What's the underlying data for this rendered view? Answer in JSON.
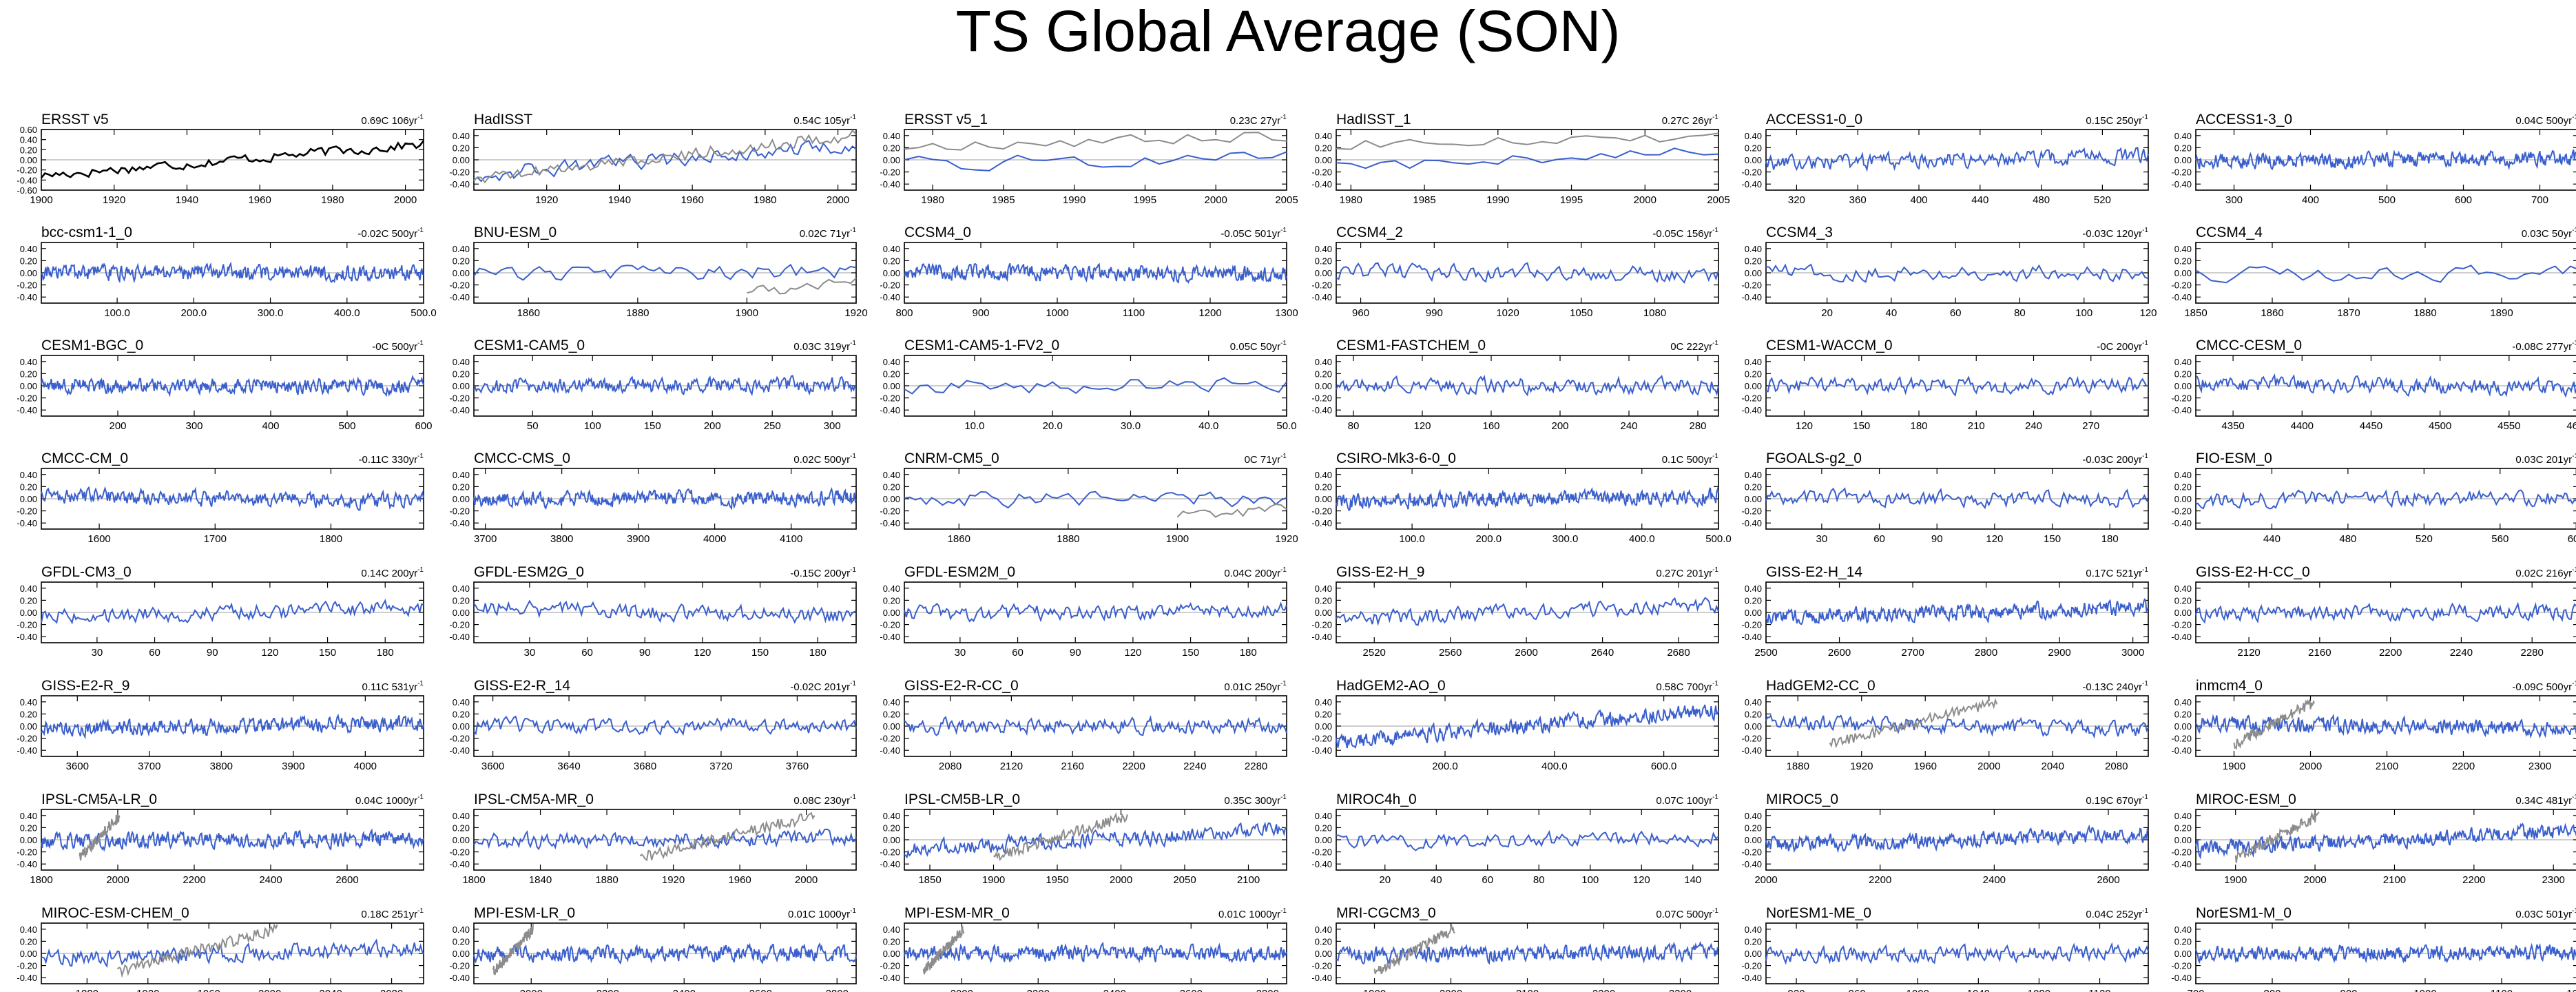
{
  "title": "TS Global Average (SON)",
  "colors": {
    "model": "#3a5fcd",
    "obs": "#8c8c8c",
    "ref": "#000000",
    "zero": "#b0b0b0"
  },
  "yticks": [
    "0.60",
    "0.40",
    "0.20",
    "0.00",
    "-0.20",
    "-0.40",
    "-0.60"
  ],
  "yticks_small": [
    "0.40",
    "0.20",
    "0.00",
    "-0.20",
    "-0.40"
  ],
  "chart_data": [
    {
      "name": "ERSST v5",
      "stat": "0.69C 106yr",
      "xlim": [
        1900,
        2005
      ],
      "xticks": [
        "1900",
        "1920",
        "1940",
        "1960",
        "1980",
        "2000"
      ],
      "obs_overlay": false,
      "reference": true
    },
    {
      "name": "HadISST",
      "stat": "0.54C 105yr",
      "xlim": [
        1900,
        2005
      ],
      "xticks": [
        "1920",
        "1940",
        "1960",
        "1980",
        "2000"
      ],
      "obs_overlay": true
    },
    {
      "name": "ERSST v5_1",
      "stat": "0.23C 27yr",
      "xlim": [
        1978,
        2005
      ],
      "xticks": [
        "1980",
        "1985",
        "1990",
        "1995",
        "2000",
        "2005"
      ],
      "obs_overlay": true
    },
    {
      "name": "HadISST_1",
      "stat": "0.27C 26yr",
      "xlim": [
        1979,
        2005
      ],
      "xticks": [
        "1980",
        "1985",
        "1990",
        "1995",
        "2000",
        "2005"
      ],
      "obs_overlay": true
    },
    {
      "name": "ACCESS1-0_0",
      "stat": "0.15C 250yr",
      "xlim": [
        300,
        550
      ],
      "xticks": [
        "320",
        "360",
        "400",
        "440",
        "480",
        "520"
      ],
      "obs_overlay": false
    },
    {
      "name": "ACCESS1-3_0",
      "stat": "0.04C 500yr",
      "xlim": [
        250,
        750
      ],
      "xticks": [
        "300",
        "400",
        "500",
        "600",
        "700"
      ],
      "obs_overlay": false
    },
    {
      "name": "bcc-csm1-1_0",
      "stat": "-0.02C 500yr",
      "xlim": [
        1,
        500
      ],
      "xticks": [
        "100.0",
        "200.0",
        "300.0",
        "400.0",
        "500.0"
      ],
      "obs_overlay": false
    },
    {
      "name": "BNU-ESM_0",
      "stat": "0.02C 71yr",
      "xlim": [
        1850,
        1920
      ],
      "xticks": [
        "1860",
        "1880",
        "1900",
        "1920"
      ],
      "obs_overlay": true
    },
    {
      "name": "CCSM4_0",
      "stat": "-0.05C 501yr",
      "xlim": [
        800,
        1300
      ],
      "xticks": [
        "800",
        "900",
        "1000",
        "1100",
        "1200",
        "1300"
      ],
      "obs_overlay": false
    },
    {
      "name": "CCSM4_2",
      "stat": "-0.05C 156yr",
      "xlim": [
        950,
        1106
      ],
      "xticks": [
        "960",
        "990",
        "1020",
        "1050",
        "1080"
      ],
      "obs_overlay": false
    },
    {
      "name": "CCSM4_3",
      "stat": "-0.03C 120yr",
      "xlim": [
        1,
        120
      ],
      "xticks": [
        "20",
        "40",
        "60",
        "80",
        "100",
        "120"
      ],
      "obs_overlay": false
    },
    {
      "name": "CCSM4_4",
      "stat": "0.03C 50yr",
      "xlim": [
        1850,
        1900
      ],
      "xticks": [
        "1850",
        "1860",
        "1870",
        "1880",
        "1890"
      ],
      "obs_overlay": false
    },
    {
      "name": "CESM1-BGC_0",
      "stat": "-0C 500yr",
      "xlim": [
        100,
        600
      ],
      "xticks": [
        "200",
        "300",
        "400",
        "500",
        "600"
      ],
      "obs_overlay": false
    },
    {
      "name": "CESM1-CAM5_0",
      "stat": "0.03C 319yr",
      "xlim": [
        1,
        320
      ],
      "xticks": [
        "50",
        "100",
        "150",
        "200",
        "250",
        "300"
      ],
      "obs_overlay": false
    },
    {
      "name": "CESM1-CAM5-1-FV2_0",
      "stat": "0.05C 50yr",
      "xlim": [
        1,
        50
      ],
      "xticks": [
        "10.0",
        "20.0",
        "30.0",
        "40.0",
        "50.0"
      ],
      "obs_overlay": false
    },
    {
      "name": "CESM1-FASTCHEM_0",
      "stat": "0C 222yr",
      "xlim": [
        70,
        292
      ],
      "xticks": [
        "80",
        "120",
        "160",
        "200",
        "240",
        "280"
      ],
      "obs_overlay": false
    },
    {
      "name": "CESM1-WACCM_0",
      "stat": "-0C 200yr",
      "xlim": [
        100,
        300
      ],
      "xticks": [
        "120",
        "150",
        "180",
        "210",
        "240",
        "270"
      ],
      "obs_overlay": false
    },
    {
      "name": "CMCC-CESM_0",
      "stat": "-0.08C 277yr",
      "xlim": [
        4323,
        4600
      ],
      "xticks": [
        "4350",
        "4400",
        "4450",
        "4500",
        "4550",
        "4600"
      ],
      "obs_overlay": false
    },
    {
      "name": "CMCC-CM_0",
      "stat": "-0.11C 330yr",
      "xlim": [
        1550,
        1880
      ],
      "xticks": [
        "1600",
        "1700",
        "1800"
      ],
      "obs_overlay": false
    },
    {
      "name": "CMCC-CMS_0",
      "stat": "0.02C 500yr",
      "xlim": [
        3685,
        4185
      ],
      "xticks": [
        "3700",
        "3800",
        "3900",
        "4000",
        "4100"
      ],
      "obs_overlay": false
    },
    {
      "name": "CNRM-CM5_0",
      "stat": "0C 71yr",
      "xlim": [
        1850,
        1920
      ],
      "xticks": [
        "1860",
        "1880",
        "1900",
        "1920"
      ],
      "obs_overlay": true
    },
    {
      "name": "CSIRO-Mk3-6-0_0",
      "stat": "0.1C 500yr",
      "xlim": [
        1,
        500
      ],
      "xticks": [
        "100.0",
        "200.0",
        "300.0",
        "400.0",
        "500.0"
      ],
      "obs_overlay": false
    },
    {
      "name": "FGOALS-g2_0",
      "stat": "-0.03C 200yr",
      "xlim": [
        1,
        200
      ],
      "xticks": [
        "30",
        "60",
        "90",
        "120",
        "150",
        "180"
      ],
      "obs_overlay": false
    },
    {
      "name": "FIO-ESM_0",
      "stat": "0.03C 201yr",
      "xlim": [
        400,
        601
      ],
      "xticks": [
        "440",
        "480",
        "520",
        "560",
        "600"
      ],
      "obs_overlay": false
    },
    {
      "name": "GFDL-CM3_0",
      "stat": "0.14C 200yr",
      "xlim": [
        1,
        200
      ],
      "xticks": [
        "30",
        "60",
        "90",
        "120",
        "150",
        "180"
      ],
      "obs_overlay": false
    },
    {
      "name": "GFDL-ESM2G_0",
      "stat": "-0.15C 200yr",
      "xlim": [
        1,
        200
      ],
      "xticks": [
        "30",
        "60",
        "90",
        "120",
        "150",
        "180"
      ],
      "obs_overlay": false
    },
    {
      "name": "GFDL-ESM2M_0",
      "stat": "0.04C 200yr",
      "xlim": [
        1,
        200
      ],
      "xticks": [
        "30",
        "60",
        "90",
        "120",
        "150",
        "180"
      ],
      "obs_overlay": false
    },
    {
      "name": "GISS-E2-H_9",
      "stat": "0.27C 201yr",
      "xlim": [
        2500,
        2701
      ],
      "xticks": [
        "2520",
        "2560",
        "2600",
        "2640",
        "2680"
      ],
      "obs_overlay": false
    },
    {
      "name": "GISS-E2-H_14",
      "stat": "0.17C 521yr",
      "xlim": [
        2500,
        3021
      ],
      "xticks": [
        "2500",
        "2600",
        "2700",
        "2800",
        "2900",
        "3000"
      ],
      "obs_overlay": false
    },
    {
      "name": "GISS-E2-H-CC_0",
      "stat": "0.02C 216yr",
      "xlim": [
        2090,
        2306
      ],
      "xticks": [
        "2120",
        "2160",
        "2200",
        "2240",
        "2280"
      ],
      "obs_overlay": false
    },
    {
      "name": "GISS-E2-R_9",
      "stat": "0.11C 531yr",
      "xlim": [
        3550,
        4081
      ],
      "xticks": [
        "3600",
        "3700",
        "3800",
        "3900",
        "4000"
      ],
      "obs_overlay": false
    },
    {
      "name": "GISS-E2-R_14",
      "stat": "-0.02C 201yr",
      "xlim": [
        3590,
        3791
      ],
      "xticks": [
        "3600",
        "3640",
        "3680",
        "3720",
        "3760"
      ],
      "obs_overlay": false
    },
    {
      "name": "GISS-E2-R-CC_0",
      "stat": "0.01C 250yr",
      "xlim": [
        2050,
        2300
      ],
      "xticks": [
        "2080",
        "2120",
        "2160",
        "2200",
        "2240",
        "2280"
      ],
      "obs_overlay": false
    },
    {
      "name": "HadGEM2-AO_0",
      "stat": "0.58C 700yr",
      "xlim": [
        1,
        700
      ],
      "xticks": [
        "200.0",
        "400.0",
        "600.0"
      ],
      "obs_overlay": false
    },
    {
      "name": "HadGEM2-CC_0",
      "stat": "-0.13C 240yr",
      "xlim": [
        1860,
        2100
      ],
      "xticks": [
        "1880",
        "1920",
        "1960",
        "2000",
        "2040",
        "2080"
      ],
      "obs_overlay": true
    },
    {
      "name": "inmcm4_0",
      "stat": "-0.09C 500yr",
      "xlim": [
        1850,
        2350
      ],
      "xticks": [
        "1900",
        "2000",
        "2100",
        "2200",
        "2300"
      ],
      "obs_overlay": true
    },
    {
      "name": "IPSL-CM5A-LR_0",
      "stat": "0.04C 1000yr",
      "xlim": [
        1800,
        2800
      ],
      "xticks": [
        "1800",
        "2000",
        "2200",
        "2400",
        "2600"
      ],
      "obs_overlay": true
    },
    {
      "name": "IPSL-CM5A-MR_0",
      "stat": "0.08C 230yr",
      "xlim": [
        1800,
        2030
      ],
      "xticks": [
        "1800",
        "1840",
        "1880",
        "1920",
        "1960",
        "2000"
      ],
      "obs_overlay": true
    },
    {
      "name": "IPSL-CM5B-LR_0",
      "stat": "0.35C 300yr",
      "xlim": [
        1830,
        2130
      ],
      "xticks": [
        "1850",
        "1900",
        "1950",
        "2000",
        "2050",
        "2100"
      ],
      "obs_overlay": true
    },
    {
      "name": "MIROC4h_0",
      "stat": "0.07C 100yr",
      "xlim": [
        1,
        150
      ],
      "xticks": [
        "20",
        "40",
        "60",
        "80",
        "100",
        "120",
        "140"
      ],
      "obs_overlay": false
    },
    {
      "name": "MIROC5_0",
      "stat": "0.19C 670yr",
      "xlim": [
        2000,
        2670
      ],
      "xticks": [
        "2000",
        "2200",
        "2400",
        "2600"
      ],
      "obs_overlay": false
    },
    {
      "name": "MIROC-ESM_0",
      "stat": "0.34C 481yr",
      "xlim": [
        1850,
        2331
      ],
      "xticks": [
        "1900",
        "2000",
        "2100",
        "2200",
        "2300"
      ],
      "obs_overlay": true
    },
    {
      "name": "MIROC-ESM-CHEM_0",
      "stat": "0.18C 251yr",
      "xlim": [
        1850,
        2101
      ],
      "xticks": [
        "1880",
        "1920",
        "1960",
        "2000",
        "2040",
        "2080"
      ],
      "obs_overlay": true
    },
    {
      "name": "MPI-ESM-LR_0",
      "stat": "0.01C 1000yr",
      "xlim": [
        1850,
        2850
      ],
      "xticks": [
        "2000",
        "2200",
        "2400",
        "2600",
        "2800"
      ],
      "obs_overlay": true
    },
    {
      "name": "MPI-ESM-MR_0",
      "stat": "0.01C 1000yr",
      "xlim": [
        1850,
        2850
      ],
      "xticks": [
        "2000",
        "2200",
        "2400",
        "2600",
        "2800"
      ],
      "obs_overlay": true
    },
    {
      "name": "MRI-CGCM3_0",
      "stat": "0.07C 500yr",
      "xlim": [
        1850,
        2350
      ],
      "xticks": [
        "1900",
        "2000",
        "2100",
        "2200",
        "2300"
      ],
      "obs_overlay": true
    },
    {
      "name": "NorESM1-ME_0",
      "stat": "0.04C 252yr",
      "xlim": [
        900,
        1152
      ],
      "xticks": [
        "920",
        "960",
        "1000",
        "1040",
        "1080",
        "1120"
      ],
      "obs_overlay": false
    },
    {
      "name": "NorESM1-M_0",
      "stat": "0.03C 501yr",
      "xlim": [
        700,
        1200
      ],
      "xticks": [
        "700",
        "800",
        "900",
        "1000",
        "1100",
        "1200"
      ],
      "obs_overlay": false
    }
  ]
}
